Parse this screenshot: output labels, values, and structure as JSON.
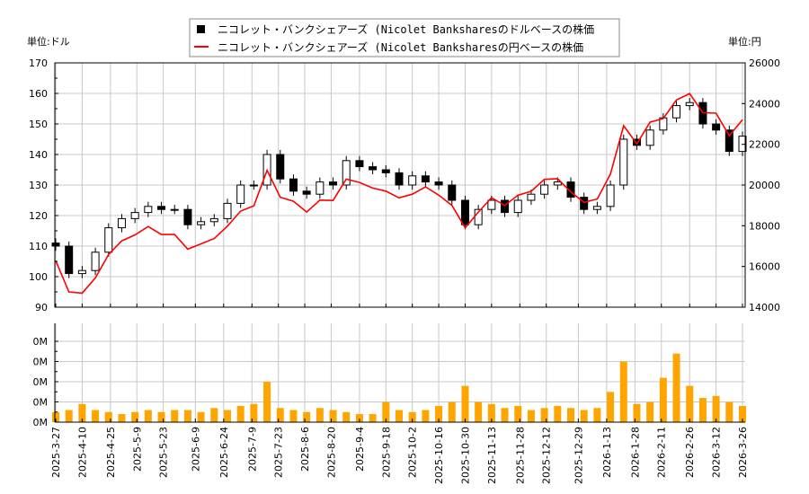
{
  "chart_data": [
    {
      "type": "candlestick+line",
      "left_unit_label": "単位:ドル",
      "right_unit_label": "単位:円",
      "legend": {
        "placement": "top-center",
        "entries": [
          {
            "name": "ニコレット・バンクシェアーズ (Nicolet Banksharesのドルベースの株価",
            "color": "#000000",
            "marker": "square"
          },
          {
            "name": "ニコレット・バンクシェアーズ (Nicolet Banksharesの円ベースの株価",
            "color": "#ff0000",
            "marker": "line"
          }
        ]
      },
      "ylim_left": [
        90,
        170
      ],
      "yticks_left": [
        "90",
        "100",
        "110",
        "120",
        "130",
        "140",
        "150",
        "160",
        "170"
      ],
      "ylim_right": [
        14000,
        26000
      ],
      "yticks_right": [
        "14000",
        "16000",
        "18000",
        "20000",
        "22000",
        "24000",
        "26000"
      ],
      "grid": true,
      "xticks": [
        "2025-3-27",
        "2025-4-10",
        "2025-4-25",
        "2025-5-9",
        "2025-5-23",
        "2025-6-9",
        "2025-6-24",
        "2025-7-9",
        "2025-7-23",
        "2025-8-6",
        "2025-8-20",
        "2025-9-4",
        "2025-9-18",
        "2025-10-2",
        "2025-10-16",
        "2025-10-30",
        "2025-11-13",
        "2025-11-28",
        "2025-12-12",
        "2025-12-29",
        "2026-1-13",
        "2026-1-28",
        "2026-2-11",
        "2026-2-26",
        "2026-3-12",
        "2026-3-26"
      ],
      "dates": [
        "2025-3-27",
        "2025-4-3",
        "2025-4-10",
        "2025-4-17",
        "2025-4-24",
        "2025-5-1",
        "2025-5-8",
        "2025-5-15",
        "2025-5-22",
        "2025-5-29",
        "2025-6-5",
        "2025-6-12",
        "2025-6-19",
        "2025-6-26",
        "2025-7-3",
        "2025-7-10",
        "2025-7-17",
        "2025-7-24",
        "2025-7-31",
        "2025-8-7",
        "2025-8-14",
        "2025-8-21",
        "2025-8-28",
        "2025-9-4",
        "2025-9-11",
        "2025-9-18",
        "2025-9-25",
        "2025-10-2",
        "2025-10-9",
        "2025-10-16",
        "2025-10-23",
        "2025-10-30",
        "2025-11-6",
        "2025-11-13",
        "2025-11-20",
        "2025-11-27",
        "2025-12-4",
        "2025-12-11",
        "2025-12-18",
        "2025-12-25",
        "2026-1-1",
        "2026-1-8",
        "2026-1-15",
        "2026-1-22",
        "2026-1-29",
        "2026-2-5",
        "2026-2-12",
        "2026-2-19",
        "2026-2-26",
        "2026-3-5",
        "2026-3-12",
        "2026-3-19",
        "2026-3-26"
      ],
      "usd_close": [
        110,
        101,
        102,
        108,
        116,
        119,
        121,
        123,
        122,
        122,
        117,
        118,
        119,
        124,
        130,
        130,
        140,
        132,
        128,
        127,
        131,
        130,
        138,
        136,
        135,
        134,
        130,
        133,
        131,
        130,
        125,
        117,
        122,
        125,
        121,
        125,
        127,
        130,
        131,
        126,
        122,
        123,
        130,
        145,
        143,
        148,
        152,
        156,
        157,
        150,
        148,
        141,
        146
      ],
      "jpy_close": [
        16280,
        14750,
        14690,
        15440,
        16590,
        17260,
        17550,
        17960,
        17570,
        17570,
        16850,
        17110,
        17370,
        17980,
        18720,
        18980,
        20720,
        19400,
        19200,
        18670,
        19260,
        19240,
        20290,
        20130,
        19850,
        19700,
        19370,
        19550,
        19910,
        19500,
        19000,
        17900,
        18670,
        19380,
        19000,
        19500,
        19690,
        20280,
        20310,
        19660,
        19150,
        19310,
        20540,
        22910,
        22020,
        23090,
        23260,
        24180,
        24490,
        23550,
        23530,
        22420,
        23210
      ],
      "volume_label_ticks": [
        "0M",
        "0M",
        "0M",
        "0M",
        "0M"
      ],
      "volume_ylim_M": [
        0,
        0.49
      ],
      "volume_M": [
        0.05,
        0.06,
        0.09,
        0.06,
        0.05,
        0.04,
        0.05,
        0.06,
        0.05,
        0.06,
        0.06,
        0.05,
        0.07,
        0.06,
        0.08,
        0.09,
        0.2,
        0.07,
        0.06,
        0.05,
        0.07,
        0.06,
        0.05,
        0.04,
        0.04,
        0.1,
        0.06,
        0.05,
        0.06,
        0.08,
        0.1,
        0.18,
        0.1,
        0.09,
        0.07,
        0.08,
        0.06,
        0.07,
        0.08,
        0.07,
        0.06,
        0.07,
        0.15,
        0.3,
        0.09,
        0.1,
        0.22,
        0.34,
        0.18,
        0.12,
        0.13,
        0.1,
        0.08
      ],
      "colors": {
        "candle": "#000000",
        "jpy_line": "#ff0000",
        "volume": "#ffa500",
        "grid": "#c8c8c8"
      }
    }
  ]
}
